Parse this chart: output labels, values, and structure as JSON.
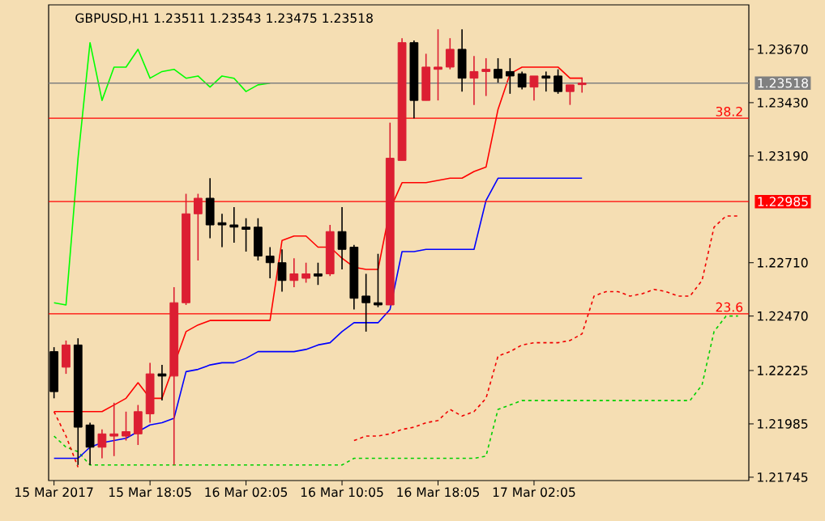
{
  "chart_data": {
    "type": "candlestick",
    "title": "GBPUSD,H1  1.23511 1.23543 1.23475 1.23518",
    "categories": [
      "15 Mar 2017",
      null,
      null,
      null,
      null,
      null,
      null,
      null,
      "15 Mar 18:05",
      null,
      null,
      null,
      null,
      null,
      null,
      null,
      "16 Mar 02:05",
      null,
      null,
      null,
      null,
      null,
      null,
      null,
      "16 Mar 10:05",
      null,
      null,
      null,
      null,
      null,
      null,
      null,
      "16 Mar 18:05",
      null,
      null,
      null,
      null,
      null,
      null,
      null,
      "17 Mar 02:05",
      null,
      null,
      null,
      null,
      null,
      null,
      null,
      null,
      null,
      null,
      null,
      null,
      null,
      null,
      null,
      null,
      null
    ],
    "ohlc": [
      [
        1.2231,
        1.2233,
        1.221,
        1.2213
      ],
      [
        1.2224,
        1.2236,
        1.2221,
        1.2234
      ],
      [
        1.2234,
        1.2237,
        1.218,
        1.2197
      ],
      [
        1.2198,
        1.2199,
        1.218,
        1.2188
      ],
      [
        1.2188,
        1.2196,
        1.2183,
        1.2194
      ],
      [
        1.2193,
        1.2208,
        1.2184,
        1.2194
      ],
      [
        1.2193,
        1.2204,
        1.2191,
        1.2195
      ],
      [
        1.2194,
        1.2207,
        1.2189,
        1.2204
      ],
      [
        1.2203,
        1.2226,
        1.2199,
        1.2221
      ],
      [
        1.2221,
        1.2225,
        1.2209,
        1.222
      ],
      [
        1.222,
        1.226,
        1.218,
        1.2253
      ],
      [
        1.2253,
        1.2302,
        1.2252,
        1.2293
      ],
      [
        1.2293,
        1.2302,
        1.2272,
        1.23
      ],
      [
        1.23,
        1.2309,
        1.2282,
        1.2288
      ],
      [
        1.2289,
        1.2293,
        1.2278,
        1.2288
      ],
      [
        1.2288,
        1.2296,
        1.228,
        1.2287
      ],
      [
        1.2287,
        1.2291,
        1.2276,
        1.2286
      ],
      [
        1.2287,
        1.2291,
        1.2272,
        1.2274
      ],
      [
        1.2274,
        1.2278,
        1.2264,
        1.2271
      ],
      [
        1.2271,
        1.2277,
        1.2258,
        1.2263
      ],
      [
        1.2263,
        1.2273,
        1.226,
        1.2266
      ],
      [
        1.2264,
        1.2271,
        1.2262,
        1.2266
      ],
      [
        1.2266,
        1.2271,
        1.2261,
        1.2265
      ],
      [
        1.2266,
        1.2288,
        1.2265,
        1.2285
      ],
      [
        1.2285,
        1.2296,
        1.2268,
        1.2277
      ],
      [
        1.2278,
        1.2279,
        1.225,
        1.2255
      ],
      [
        1.2256,
        1.2266,
        1.224,
        1.2253
      ],
      [
        1.2253,
        1.2275,
        1.2251,
        1.2252
      ],
      [
        1.2252,
        1.2334,
        1.2252,
        1.2318
      ],
      [
        1.2317,
        1.2372,
        1.2317,
        1.237
      ],
      [
        1.237,
        1.2371,
        1.2336,
        1.2344
      ],
      [
        1.2344,
        1.2365,
        1.2344,
        1.2359
      ],
      [
        1.2358,
        1.2376,
        1.2344,
        1.2359
      ],
      [
        1.2359,
        1.2372,
        1.2358,
        1.2367
      ],
      [
        1.2367,
        1.2376,
        1.2348,
        1.2354
      ],
      [
        1.2354,
        1.2364,
        1.2342,
        1.2357
      ],
      [
        1.2357,
        1.2363,
        1.2346,
        1.2358
      ],
      [
        1.2358,
        1.2363,
        1.2352,
        1.2354
      ],
      [
        1.2357,
        1.2363,
        1.2347,
        1.2355
      ],
      [
        1.2356,
        1.2357,
        1.2349,
        1.235
      ],
      [
        1.235,
        1.2355,
        1.2344,
        1.2355
      ],
      [
        1.2355,
        1.2357,
        1.2348,
        1.2354
      ],
      [
        1.2355,
        1.2358,
        1.2347,
        1.2348
      ],
      [
        1.2348,
        1.2351,
        1.2342,
        1.2351
      ],
      [
        1.23511,
        1.23543,
        1.23475,
        1.23518
      ],
      null,
      null,
      null,
      null,
      null,
      null,
      null,
      null,
      null,
      null,
      null,
      null,
      null
    ],
    "colors": [
      "#000000",
      "#dc1e32",
      "#000000",
      "#000000",
      "#dc1e32",
      "#dc1e32",
      "#dc1e32",
      "#dc1e32",
      "#dc1e32",
      "#000000",
      "#dc1e32",
      "#dc1e32",
      "#dc1e32",
      "#000000",
      "#000000",
      "#000000",
      "#000000",
      "#000000",
      "#000000",
      "#000000",
      "#dc1e32",
      "#dc1e32",
      "#000000",
      "#dc1e32",
      "#000000",
      "#000000",
      "#000000",
      "#000000",
      "#dc1e32",
      "#dc1e32",
      "#000000",
      "#dc1e32",
      "#dc1e32",
      "#dc1e32",
      "#000000",
      "#dc1e32",
      "#dc1e32",
      "#000000",
      "#000000",
      "#000000",
      "#dc1e32",
      "#000000",
      "#000000",
      "#dc1e32",
      "#dc1e32",
      null,
      null,
      null,
      null,
      null,
      null,
      null,
      null,
      null,
      null,
      null,
      null,
      null
    ],
    "series": [
      {
        "type": "line",
        "color": "#00d000",
        "line_style": "dashed",
        "values": [
          1.2193,
          1.2188,
          1.2186,
          1.218,
          1.218,
          1.218,
          1.218,
          1.218,
          1.218,
          1.218,
          1.218,
          1.218,
          1.218,
          1.218,
          1.218,
          1.218,
          1.218,
          1.218,
          1.218,
          1.218,
          1.218,
          1.218,
          1.218,
          1.218,
          1.218,
          1.2183,
          1.2183,
          1.2183,
          1.2183,
          1.2183,
          1.2183,
          1.2183,
          1.2183,
          1.2183,
          1.2183,
          1.2183,
          1.2184,
          1.2205,
          1.2207,
          1.2209,
          1.2209,
          1.2209,
          1.2209,
          1.2209,
          1.2209,
          1.2209,
          1.2209,
          1.2209,
          1.2209,
          1.2209,
          1.2209,
          1.2209,
          1.2209,
          1.2209,
          1.2216,
          1.224,
          1.2247,
          1.2247
        ]
      },
      {
        "type": "line",
        "color": "#f00000",
        "line_style": "dashed",
        "values": [
          1.2204,
          1.2193,
          1.2179,
          null,
          null,
          null,
          null,
          null,
          null,
          null,
          null,
          null,
          null,
          null,
          null,
          null,
          null,
          null,
          null,
          null,
          null,
          null,
          null,
          null,
          null,
          1.2191,
          1.2193,
          1.2193,
          1.2194,
          1.2196,
          1.2197,
          1.2199,
          1.22,
          1.2205,
          1.2202,
          1.2204,
          1.221,
          1.2229,
          1.2231,
          1.2234,
          1.2235,
          1.2235,
          1.2235,
          1.2236,
          1.2239,
          1.2256,
          1.2258,
          1.2258,
          1.2256,
          1.2257,
          1.2259,
          1.2258,
          1.2256,
          1.2256,
          1.2263,
          1.2287,
          1.2292,
          1.2292
        ]
      },
      {
        "type": "line",
        "color": "#0000ff",
        "line_style": "solid",
        "values": [
          1.2183,
          1.2183,
          1.2183,
          1.2188,
          1.219,
          1.2191,
          1.2192,
          1.2195,
          1.2198,
          1.2199,
          1.2201,
          1.2222,
          1.2223,
          1.2225,
          1.2226,
          1.2226,
          1.2228,
          1.2231,
          1.2231,
          1.2231,
          1.2231,
          1.2232,
          1.2234,
          1.2235,
          1.224,
          1.2244,
          1.2244,
          1.2244,
          1.225,
          1.2276,
          1.2276,
          1.2277,
          1.2277,
          1.2277,
          1.2277,
          1.2277,
          1.2299,
          1.2309,
          1.2309,
          1.2309,
          1.2309,
          1.2309,
          1.2309,
          1.2309,
          1.2309,
          null,
          null,
          null,
          null,
          null,
          null,
          null,
          null,
          null,
          null,
          null,
          null,
          null
        ]
      },
      {
        "type": "line",
        "color": "#ff0000",
        "line_style": "solid",
        "values": [
          1.2204,
          1.2204,
          1.2204,
          1.2204,
          1.2204,
          1.2207,
          1.221,
          1.2217,
          1.221,
          1.221,
          1.2225,
          1.224,
          1.2243,
          1.2245,
          1.2245,
          1.2245,
          1.2245,
          1.2245,
          1.2245,
          1.2281,
          1.2283,
          1.2283,
          1.2278,
          1.2278,
          1.2273,
          1.2269,
          1.2268,
          1.2268,
          1.2295,
          1.2307,
          1.2307,
          1.2307,
          1.2308,
          1.2309,
          1.2309,
          1.2312,
          1.2314,
          1.234,
          1.2356,
          1.2359,
          1.2359,
          1.2359,
          1.2359,
          1.2354,
          1.2354,
          null,
          null,
          null,
          null,
          null,
          null,
          null,
          null,
          null,
          null,
          null,
          null,
          null
        ]
      },
      {
        "type": "line",
        "color": "#00ff00",
        "line_style": "solid",
        "values": [
          1.2253,
          1.2252,
          1.2318,
          1.237,
          1.2344,
          1.2359,
          1.2359,
          1.2367,
          1.2354,
          1.2357,
          1.2358,
          1.2354,
          1.2355,
          1.235,
          1.2355,
          1.2354,
          1.2348,
          1.2351,
          1.23518,
          null,
          null,
          null,
          null,
          null,
          null,
          null,
          null,
          null,
          null,
          null,
          null,
          null,
          null,
          null,
          null,
          null,
          null,
          null,
          null,
          null,
          null,
          null,
          null,
          null,
          null,
          null,
          null,
          null,
          null,
          null,
          null,
          null,
          null,
          null,
          null,
          null,
          null,
          null
        ]
      }
    ],
    "ylim": [
      1.2173,
      1.2387
    ],
    "yticks": [
      {
        "value": 1.2367,
        "label": "1.23670"
      },
      {
        "value": 1.2343,
        "label": "1.23430"
      },
      {
        "value": 1.2319,
        "label": "1.23190"
      },
      {
        "value": 1.2271,
        "label": "1.22710"
      },
      {
        "value": 1.2247,
        "label": "1.22470"
      },
      {
        "value": 1.22225,
        "label": "1.22225"
      },
      {
        "value": 1.21985,
        "label": "1.21985"
      },
      {
        "value": 1.21745,
        "label": "1.21745"
      }
    ],
    "ref_lines": [
      {
        "axis": "y",
        "value": 1.23518,
        "label": "1.23518",
        "color": "#808080"
      },
      {
        "axis": "y",
        "value": 1.2336,
        "color": "#ff0000"
      },
      {
        "axis": "y",
        "value": 1.22985,
        "label": "1.22985",
        "color": "#ff0000"
      },
      {
        "axis": "y",
        "value": 1.2248,
        "color": "#ff0000"
      }
    ],
    "annotations": [
      {
        "text": "38.2",
        "y": 1.2336
      },
      {
        "text": "23.6",
        "y": 1.2248
      }
    ]
  }
}
